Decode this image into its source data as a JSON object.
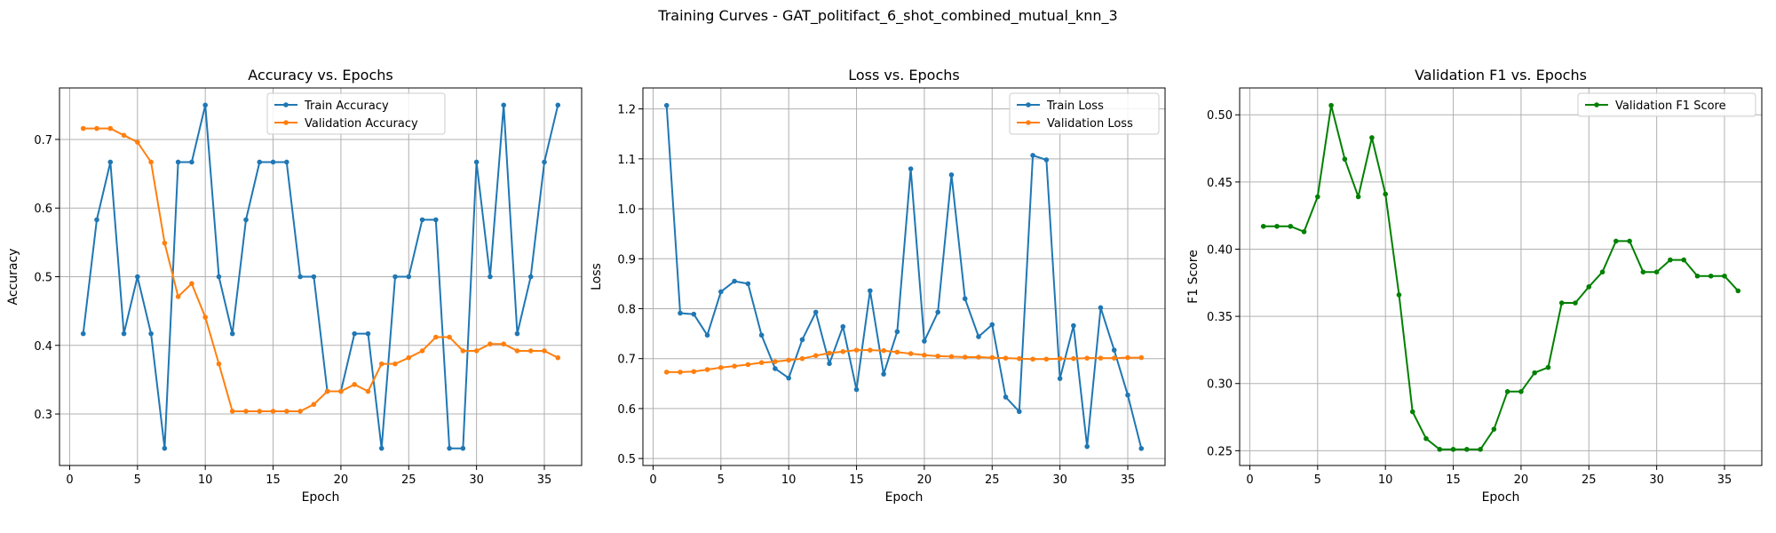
{
  "figure_title": "Training Curves - GAT_politifact_6_shot_combined_mutual_knn_3",
  "chart_data": [
    {
      "type": "line",
      "title": "Accuracy vs. Epochs",
      "xlabel": "Epoch",
      "ylabel": "Accuracy",
      "xlim": [
        -0.75,
        37.75
      ],
      "ylim": [
        0.225,
        0.775
      ],
      "xticks": [
        0,
        5,
        10,
        15,
        20,
        25,
        30,
        35
      ],
      "yticks": [
        0.3,
        0.4,
        0.5,
        0.6,
        0.7
      ],
      "ytick_labels": [
        "0.3",
        "0.4",
        "0.5",
        "0.6",
        "0.7"
      ],
      "grid": true,
      "legend": "upper center",
      "x": [
        1,
        2,
        3,
        4,
        5,
        6,
        7,
        8,
        9,
        10,
        11,
        12,
        13,
        14,
        15,
        16,
        17,
        18,
        19,
        20,
        21,
        22,
        23,
        24,
        25,
        26,
        27,
        28,
        29,
        30,
        31,
        32,
        33,
        34,
        35,
        36
      ],
      "series": [
        {
          "name": "Train Accuracy",
          "color": "#1f77b4",
          "values": [
            0.417,
            0.583,
            0.667,
            0.417,
            0.5,
            0.417,
            0.25,
            0.667,
            0.667,
            0.75,
            0.5,
            0.417,
            0.583,
            0.667,
            0.667,
            0.667,
            0.5,
            0.5,
            0.333,
            0.333,
            0.417,
            0.417,
            0.25,
            0.5,
            0.5,
            0.583,
            0.583,
            0.25,
            0.25,
            0.667,
            0.5,
            0.75,
            0.417,
            0.5,
            0.667,
            0.75
          ]
        },
        {
          "name": "Validation Accuracy",
          "color": "#ff7f0e",
          "values": [
            0.716,
            0.716,
            0.716,
            0.706,
            0.696,
            0.667,
            0.549,
            0.471,
            0.49,
            0.441,
            0.373,
            0.304,
            0.304,
            0.304,
            0.304,
            0.304,
            0.304,
            0.314,
            0.333,
            0.333,
            0.343,
            0.333,
            0.373,
            0.373,
            0.382,
            0.392,
            0.412,
            0.412,
            0.392,
            0.392,
            0.402,
            0.402,
            0.392,
            0.392,
            0.392,
            0.382
          ]
        }
      ]
    },
    {
      "type": "line",
      "title": "Loss vs. Epochs",
      "xlabel": "Epoch",
      "ylabel": "Loss",
      "xlim": [
        -0.75,
        37.75
      ],
      "ylim": [
        0.486,
        1.242
      ],
      "xticks": [
        0,
        5,
        10,
        15,
        20,
        25,
        30,
        35
      ],
      "yticks": [
        0.5,
        0.6,
        0.7,
        0.8,
        0.9,
        1.0,
        1.1,
        1.2
      ],
      "ytick_labels": [
        "0.5",
        "0.6",
        "0.7",
        "0.8",
        "0.9",
        "1.0",
        "1.1",
        "1.2"
      ],
      "grid": true,
      "legend": "upper right",
      "x": [
        1,
        2,
        3,
        4,
        5,
        6,
        7,
        8,
        9,
        10,
        11,
        12,
        13,
        14,
        15,
        16,
        17,
        18,
        19,
        20,
        21,
        22,
        23,
        24,
        25,
        26,
        27,
        28,
        29,
        30,
        31,
        32,
        33,
        34,
        35,
        36
      ],
      "series": [
        {
          "name": "Train Loss",
          "color": "#1f77b4",
          "values": [
            1.207,
            0.791,
            0.789,
            0.747,
            0.834,
            0.855,
            0.85,
            0.747,
            0.68,
            0.661,
            0.738,
            0.793,
            0.69,
            0.764,
            0.638,
            0.836,
            0.669,
            0.754,
            1.08,
            0.735,
            0.793,
            1.068,
            0.82,
            0.744,
            0.768,
            0.623,
            0.594,
            1.107,
            1.098,
            0.66,
            0.766,
            0.524,
            0.802,
            0.717,
            0.627,
            0.52
          ]
        },
        {
          "name": "Validation Loss",
          "color": "#ff7f0e",
          "values": [
            0.673,
            0.673,
            0.674,
            0.678,
            0.682,
            0.685,
            0.688,
            0.692,
            0.694,
            0.697,
            0.7,
            0.706,
            0.711,
            0.714,
            0.717,
            0.717,
            0.716,
            0.713,
            0.71,
            0.707,
            0.705,
            0.704,
            0.703,
            0.703,
            0.702,
            0.701,
            0.7,
            0.699,
            0.699,
            0.7,
            0.7,
            0.701,
            0.701,
            0.701,
            0.702,
            0.702
          ]
        }
      ]
    },
    {
      "type": "line",
      "title": "Validation F1 vs. Epochs",
      "xlabel": "Epoch",
      "ylabel": "F1 Score",
      "xlim": [
        -0.75,
        37.75
      ],
      "ylim": [
        0.239,
        0.52
      ],
      "xticks": [
        0,
        5,
        10,
        15,
        20,
        25,
        30,
        35
      ],
      "yticks": [
        0.25,
        0.3,
        0.35,
        0.4,
        0.45,
        0.5
      ],
      "ytick_labels": [
        "0.25",
        "0.30",
        "0.35",
        "0.40",
        "0.45",
        "0.50"
      ],
      "grid": true,
      "legend": "upper right",
      "x": [
        1,
        2,
        3,
        4,
        5,
        6,
        7,
        8,
        9,
        10,
        11,
        12,
        13,
        14,
        15,
        16,
        17,
        18,
        19,
        20,
        21,
        22,
        23,
        24,
        25,
        26,
        27,
        28,
        29,
        30,
        31,
        32,
        33,
        34,
        35,
        36
      ],
      "series": [
        {
          "name": "Validation F1 Score",
          "color": "#008000",
          "values": [
            0.417,
            0.417,
            0.417,
            0.413,
            0.439,
            0.507,
            0.467,
            0.439,
            0.483,
            0.441,
            0.366,
            0.279,
            0.259,
            0.251,
            0.251,
            0.251,
            0.251,
            0.266,
            0.294,
            0.294,
            0.308,
            0.312,
            0.36,
            0.36,
            0.372,
            0.383,
            0.406,
            0.406,
            0.383,
            0.383,
            0.392,
            0.392,
            0.38,
            0.38,
            0.38,
            0.369
          ]
        }
      ]
    }
  ]
}
